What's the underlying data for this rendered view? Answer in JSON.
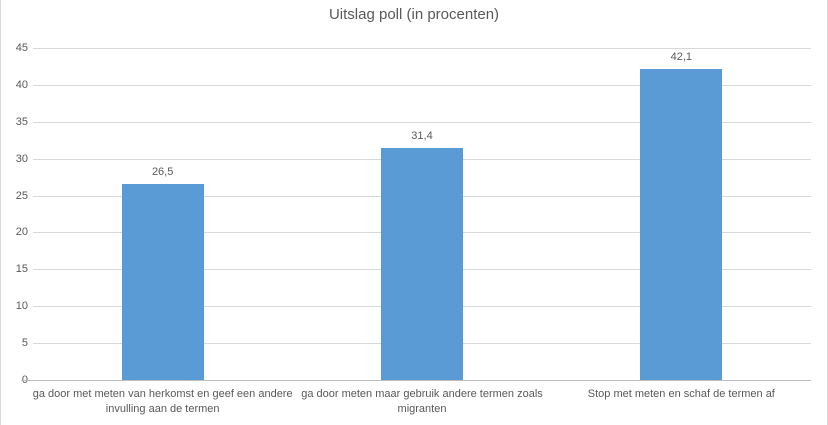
{
  "chart_data": {
    "type": "bar",
    "title": "Uitslag poll (in procenten)",
    "categories": [
      "ga door met meten van herkomst  en geef een andere invulling aan de termen",
      "ga door meten maar gebruik andere termen zoals migranten",
      "Stop met meten en schaf de termen af"
    ],
    "values": [
      26.5,
      31.4,
      42.1
    ],
    "value_labels": [
      "26,5",
      "31,4",
      "42,1"
    ],
    "xlabel": "",
    "ylabel": "",
    "ylim": [
      0,
      45
    ],
    "yticks": [
      0,
      5,
      10,
      15,
      20,
      25,
      30,
      35,
      40,
      45
    ],
    "grid": true,
    "legend": false,
    "bar_color": "#5B9BD5",
    "gridline_color": "#D9D9D9",
    "axis_line_color": "#BFBFBF",
    "text_color": "#595959",
    "border_color": "#D9D9D9"
  }
}
